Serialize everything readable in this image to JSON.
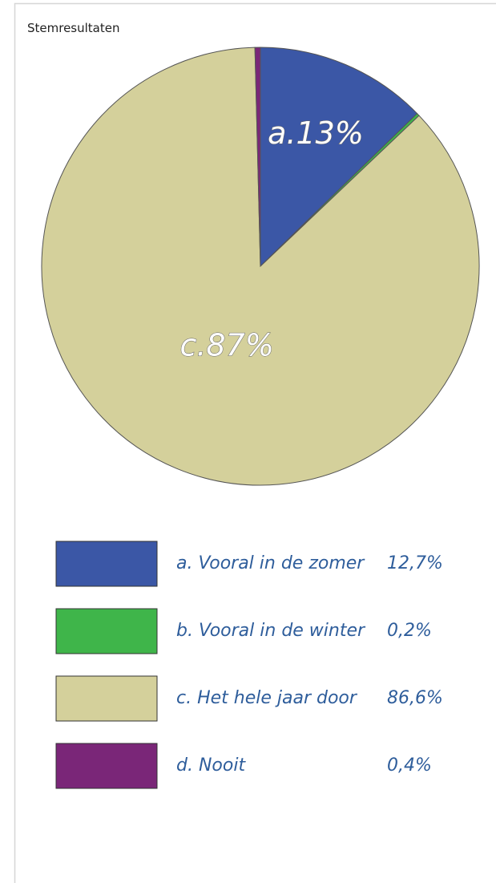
{
  "chart_data": {
    "type": "pie",
    "title": "Stemresultaten",
    "categories": [
      "a. Vooral in de zomer",
      "b. Vooral in de winter",
      "c. Het hele jaar door",
      "d. Nooit"
    ],
    "values": [
      12.7,
      0.2,
      86.6,
      0.4
    ],
    "value_labels": [
      "12,7%",
      "0,2%",
      "86,6%",
      "0,4%"
    ],
    "slice_labels": [
      "a.13%",
      null,
      "c.87%",
      null
    ],
    "colors": [
      "#3b57a6",
      "#3fb54a",
      "#d4d09b",
      "#7a2678"
    ]
  }
}
